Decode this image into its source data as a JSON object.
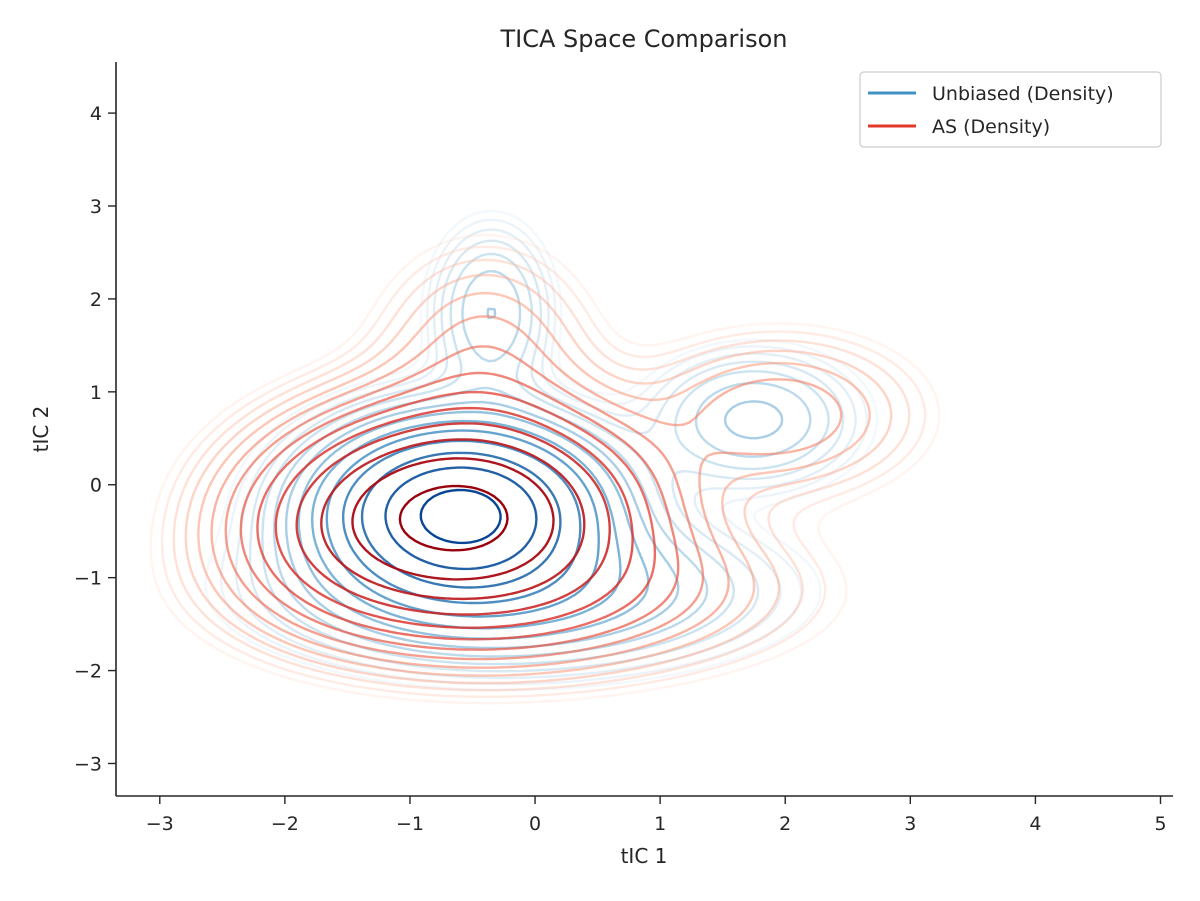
{
  "chart_data": {
    "type": "contour",
    "title": "TICA Space Comparison",
    "xlabel": "tIC 1",
    "ylabel": "tIC 2",
    "xlim": [
      -3.35,
      5.1
    ],
    "ylim": [
      -3.35,
      4.55
    ],
    "xticks": [
      -3,
      -2,
      -1,
      0,
      1,
      2,
      3,
      4,
      5
    ],
    "yticks": [
      -3,
      -2,
      -1,
      0,
      1,
      2,
      3,
      4
    ],
    "grid": false,
    "legend_position": "top-right",
    "series": [
      {
        "name": "Unbiased (Density)",
        "legend_color": "#4292c6",
        "cmap": "Blues",
        "peak": {
          "x": -0.6,
          "y": -0.3
        },
        "components": [
          {
            "x": -0.6,
            "y": -0.3,
            "sx": 0.62,
            "sy": 0.52,
            "w": 1.0
          },
          {
            "x": -0.35,
            "y": 1.85,
            "sx": 0.28,
            "sy": 0.55,
            "w": 0.09
          },
          {
            "x": 1.75,
            "y": 0.7,
            "sx": 0.48,
            "sy": 0.42,
            "w": 0.1
          },
          {
            "x": -0.15,
            "y": -1.15,
            "sx": 1.05,
            "sy": 0.45,
            "w": 0.18
          }
        ]
      },
      {
        "name": "AS (Density)",
        "legend_color": "#e2382a",
        "cmap": "Reds",
        "peak": {
          "x": -0.6,
          "y": -0.3
        },
        "components": [
          {
            "x": -0.6,
            "y": -0.3,
            "sx": 0.78,
            "sy": 0.62,
            "w": 1.0
          },
          {
            "x": -0.4,
            "y": 1.35,
            "sx": 0.5,
            "sy": 0.7,
            "w": 0.08
          },
          {
            "x": 1.95,
            "y": 0.75,
            "sx": 0.65,
            "sy": 0.5,
            "w": 0.09
          },
          {
            "x": -1.5,
            "y": -0.55,
            "sx": 0.6,
            "sy": 0.55,
            "w": 0.12
          },
          {
            "x": -0.1,
            "y": -1.15,
            "sx": 1.15,
            "sy": 0.5,
            "w": 0.16
          }
        ]
      }
    ]
  }
}
